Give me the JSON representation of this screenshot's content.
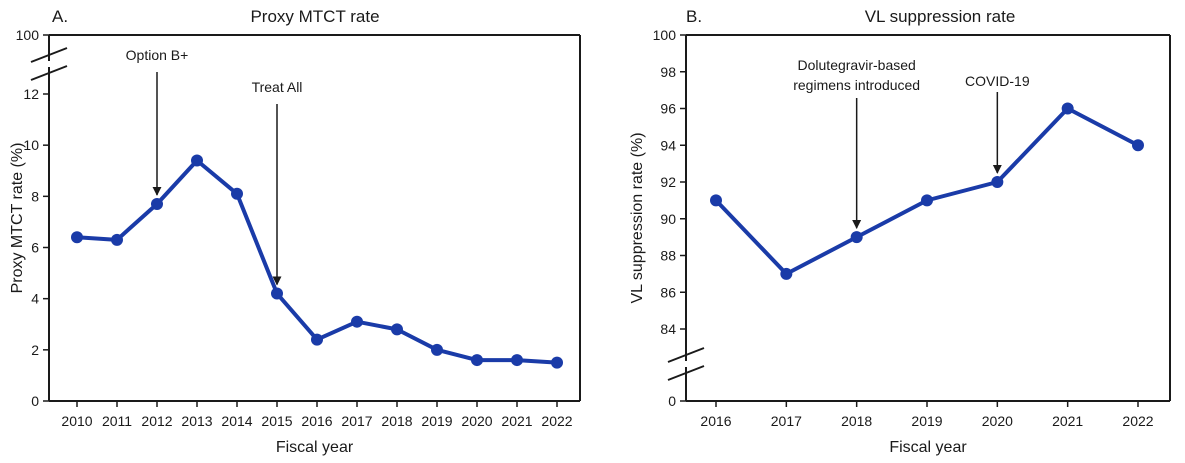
{
  "colors": {
    "series": "#1a3ba8",
    "axis": "#1a1a1a"
  },
  "chart_data": [
    {
      "type": "line",
      "panel": "A.",
      "title": "Proxy MTCT rate",
      "xlabel": "Fiscal year",
      "ylabel": "Proxy MTCT rate (%)",
      "x": [
        "2010",
        "2011",
        "2012",
        "2013",
        "2014",
        "2015",
        "2016",
        "2017",
        "2018",
        "2019",
        "2020",
        "2021",
        "2022"
      ],
      "values": [
        6.4,
        6.3,
        7.7,
        9.4,
        8.1,
        4.2,
        2.4,
        3.1,
        2.8,
        2.0,
        1.6,
        1.6,
        1.5
      ],
      "yticks": [
        "0",
        "2",
        "4",
        "6",
        "8",
        "10",
        "12"
      ],
      "ytick_break_label": "100",
      "ylim": [
        0,
        12
      ],
      "axis_break": true,
      "annotations": [
        {
          "label": [
            "Option B+"
          ],
          "x": "2012"
        },
        {
          "label": [
            "Treat All"
          ],
          "x": "2015"
        }
      ]
    },
    {
      "type": "line",
      "panel": "B.",
      "title": "VL suppression rate",
      "xlabel": "Fiscal year",
      "ylabel": "VL suppression rate (%)",
      "x": [
        "2016",
        "2017",
        "2018",
        "2019",
        "2020",
        "2021",
        "2022"
      ],
      "values": [
        91,
        87,
        89,
        91,
        92,
        96,
        94
      ],
      "yticks": [
        "84",
        "86",
        "88",
        "90",
        "92",
        "94",
        "96",
        "98",
        "100"
      ],
      "ytick_break_label": "0",
      "ylim": [
        84,
        100
      ],
      "axis_break": true,
      "annotations": [
        {
          "label": [
            "Dolutegravir-based",
            "regimens introduced"
          ],
          "x": "2018"
        },
        {
          "label": [
            "COVID-19"
          ],
          "x": "2020"
        }
      ]
    }
  ]
}
